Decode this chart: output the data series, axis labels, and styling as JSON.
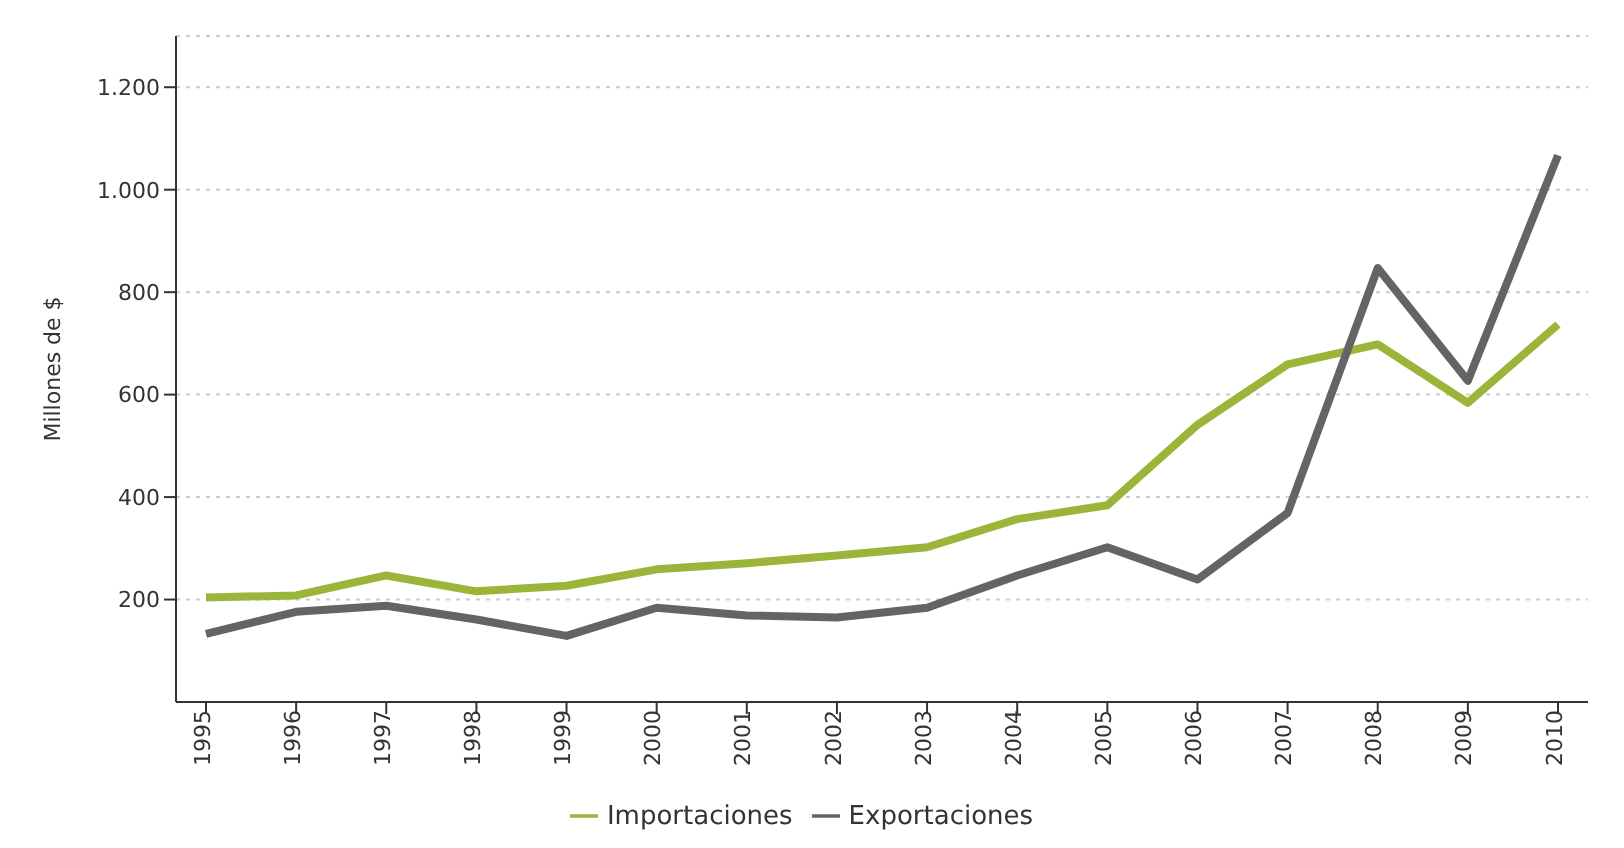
{
  "chart_data": {
    "type": "line",
    "ylabel": "Millones de $",
    "categories": [
      "1995",
      "1996",
      "1997",
      "1998",
      "1999",
      "2000",
      "2001",
      "2002",
      "2003",
      "2004",
      "2005",
      "2006",
      "2007",
      "2008",
      "2009",
      "2010"
    ],
    "series": [
      {
        "name": "Importaciones",
        "color": "#9bb53a",
        "values": [
          204,
          208,
          247,
          216,
          227,
          259,
          271,
          286,
          302,
          357,
          384,
          541,
          659,
          698,
          584,
          737
        ]
      },
      {
        "name": "Exportaciones",
        "color": "#636466",
        "values": [
          133,
          176,
          188,
          161,
          129,
          184,
          169,
          165,
          184,
          247,
          302,
          239,
          369,
          847,
          627,
          1067
        ]
      }
    ],
    "ylim": [
      0,
      1300
    ],
    "yticks": [
      200,
      400,
      600,
      800,
      {
        "value": 1000,
        "label": "1.000"
      },
      {
        "value": 1200,
        "label": "1.200"
      }
    ],
    "grid": "y",
    "legend": "bottom",
    "marker": "none",
    "line_style": "solid"
  }
}
